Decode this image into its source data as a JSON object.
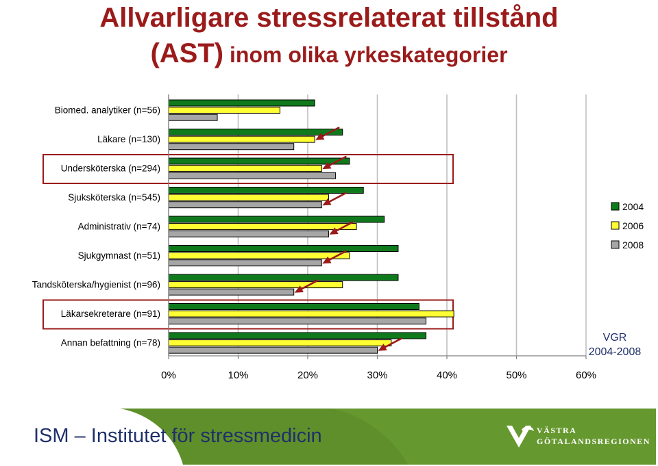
{
  "title": {
    "line1": "Allvarligare stressrelaterat tillstånd",
    "line2_big": "(AST)",
    "line2_small": " inom olika yrkeskategorier"
  },
  "chart_data": {
    "type": "bar",
    "orientation": "horizontal",
    "categories": [
      "Biomed. analytiker (n=56)",
      "Läkare (n=130)",
      "Undersköterska (n=294)",
      "Sjuksköterska (n=545)",
      "Administrativ (n=74)",
      "Sjukgymnast (n=51)",
      "Tandsköterska/hygienist (n=96)",
      "Läkarsekreterare (n=91)",
      "Annan befattning  (n=78)"
    ],
    "series": [
      {
        "name": "2004",
        "color": "#0f7a1c",
        "values": [
          21,
          25,
          26,
          28,
          31,
          33,
          33,
          36,
          37
        ]
      },
      {
        "name": "2006",
        "color": "#ffff33",
        "values": [
          16,
          21,
          22,
          23,
          27,
          26,
          25,
          41,
          32
        ]
      },
      {
        "name": "2008",
        "color": "#a6a6a6",
        "values": [
          7,
          18,
          24,
          22,
          23,
          22,
          18,
          37,
          30
        ]
      }
    ],
    "xlim": [
      0,
      60
    ],
    "xticks": [
      "0%",
      "10%",
      "20%",
      "30%",
      "40%",
      "50%",
      "60%"
    ],
    "grid": true,
    "legend_position": "right",
    "highlighted_categories": [
      2,
      7
    ],
    "arrow_color": "#9b1b1b",
    "arrows": [
      {
        "category": 1,
        "series": "2006"
      },
      {
        "category": 2,
        "series": "2006"
      },
      {
        "category": 3,
        "series": "2008"
      },
      {
        "category": 4,
        "series": "2008"
      },
      {
        "category": 5,
        "series": "2008"
      },
      {
        "category": 6,
        "series": "2008"
      },
      {
        "category": 8,
        "series": "2008"
      }
    ]
  },
  "note": {
    "line1": "VGR",
    "line2": "2004-2008"
  },
  "footer": {
    "label": "ISM – Institutet för stressmedicin",
    "logo_line1": "VÄSTRA",
    "logo_line2": "GÖTALANDSREGIONEN",
    "background": "#5e8f2a"
  }
}
